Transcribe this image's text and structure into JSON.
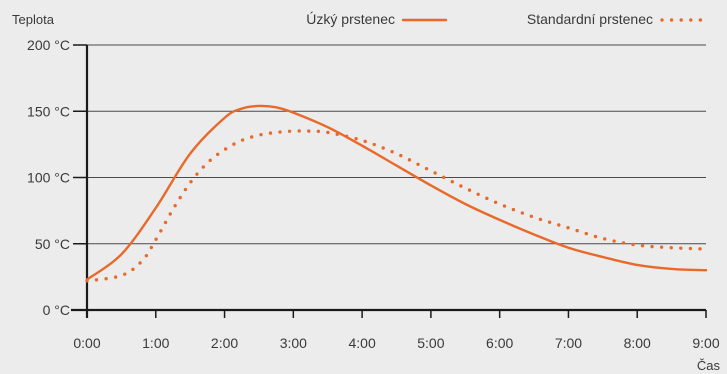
{
  "chart_data": {
    "type": "line",
    "ylabel": "Teplota",
    "xlabel": "Čas",
    "ylim": [
      0,
      200
    ],
    "xlim": [
      0,
      9
    ],
    "y_ticks": [
      0,
      50,
      100,
      150,
      200
    ],
    "y_tick_labels": [
      "0 °C",
      "50 °C",
      "100 °C",
      "150 °C",
      "200 °C"
    ],
    "x_ticks": [
      0,
      1,
      2,
      3,
      4,
      5,
      6,
      7,
      8,
      9
    ],
    "x_tick_labels": [
      "0:00",
      "1:00",
      "2:00",
      "3:00",
      "4:00",
      "5:00",
      "6:00",
      "7:00",
      "8:00",
      "9:00"
    ],
    "grid": "horizontal",
    "legend_position": "top-right",
    "series": [
      {
        "name": "Úzký prstenec",
        "style": "solid",
        "color": "#e8692a",
        "x": [
          0,
          0.5,
          1.0,
          1.5,
          2.0,
          2.25,
          2.5,
          2.75,
          3.0,
          3.5,
          4.0,
          4.5,
          5.0,
          5.5,
          6.0,
          6.5,
          7.0,
          7.5,
          8.0,
          8.5,
          9.0
        ],
        "y": [
          23,
          42,
          77,
          118,
          145,
          152,
          154,
          153,
          149,
          138,
          124,
          109,
          94,
          80,
          68,
          57,
          47,
          40,
          34,
          31,
          30
        ]
      },
      {
        "name": "Standardní prstenec",
        "style": "dotted",
        "color": "#e8692a",
        "x": [
          0,
          0.5,
          0.8,
          1.0,
          1.25,
          1.5,
          1.75,
          2.0,
          2.25,
          2.5,
          2.75,
          3.0,
          3.25,
          3.5,
          4.0,
          4.5,
          5.0,
          5.5,
          6.0,
          6.5,
          7.0,
          7.5,
          8.0,
          8.5,
          9.0
        ],
        "y": [
          22,
          26,
          37,
          53,
          76,
          96,
          111,
          121,
          128,
          132,
          134,
          135,
          135,
          134,
          128,
          118,
          105,
          92,
          80,
          70,
          62,
          54,
          49,
          47,
          46
        ]
      }
    ]
  }
}
